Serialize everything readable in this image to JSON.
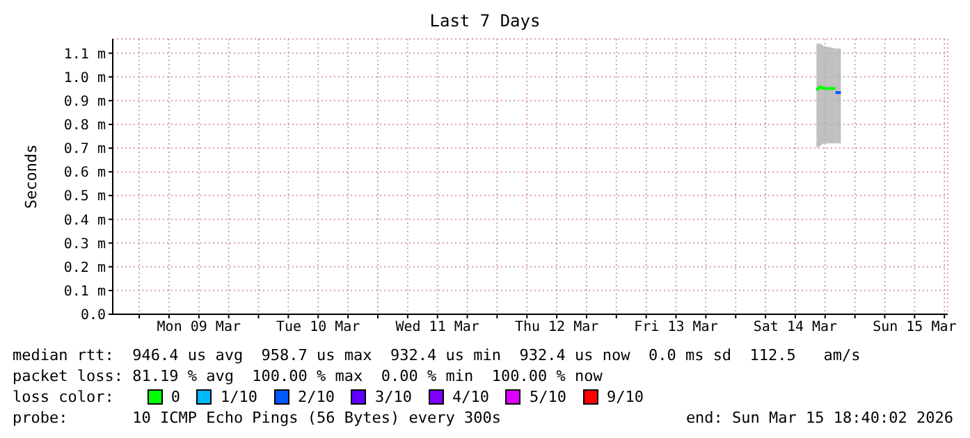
{
  "chart_data": {
    "type": "line",
    "title": "Last 7 Days",
    "ylabel": "Seconds",
    "legend_title": "loss color:",
    "xlim": [
      "2026-03-08T18:40",
      "2026-03-15T18:40"
    ],
    "xticks": [
      {
        "value": "2026-03-09T00:00",
        "label": null
      },
      {
        "value": "2026-03-09T06:00",
        "label": null
      },
      {
        "value": "2026-03-09T12:00",
        "label": "Mon 09 Mar"
      },
      {
        "value": "2026-03-09T18:00",
        "label": null
      },
      {
        "value": "2026-03-10T00:00",
        "label": null
      },
      {
        "value": "2026-03-10T06:00",
        "label": null
      },
      {
        "value": "2026-03-10T12:00",
        "label": "Tue 10 Mar"
      },
      {
        "value": "2026-03-10T18:00",
        "label": null
      },
      {
        "value": "2026-03-11T00:00",
        "label": null
      },
      {
        "value": "2026-03-11T06:00",
        "label": null
      },
      {
        "value": "2026-03-11T12:00",
        "label": "Wed 11 Mar"
      },
      {
        "value": "2026-03-11T18:00",
        "label": null
      },
      {
        "value": "2026-03-12T00:00",
        "label": null
      },
      {
        "value": "2026-03-12T06:00",
        "label": null
      },
      {
        "value": "2026-03-12T12:00",
        "label": "Thu 12 Mar"
      },
      {
        "value": "2026-03-12T18:00",
        "label": null
      },
      {
        "value": "2026-03-13T00:00",
        "label": null
      },
      {
        "value": "2026-03-13T06:00",
        "label": null
      },
      {
        "value": "2026-03-13T12:00",
        "label": "Fri 13 Mar"
      },
      {
        "value": "2026-03-13T18:00",
        "label": null
      },
      {
        "value": "2026-03-14T00:00",
        "label": null
      },
      {
        "value": "2026-03-14T06:00",
        "label": null
      },
      {
        "value": "2026-03-14T12:00",
        "label": "Sat 14 Mar"
      },
      {
        "value": "2026-03-14T18:00",
        "label": null
      },
      {
        "value": "2026-03-15T00:00",
        "label": null
      },
      {
        "value": "2026-03-15T06:00",
        "label": null
      },
      {
        "value": "2026-03-15T12:00",
        "label": "Sun 15 Mar"
      },
      {
        "value": "2026-03-15T18:00",
        "label": null
      }
    ],
    "ylim": [
      0,
      1.16
    ],
    "yticks": [
      {
        "value": 0,
        "label": "0.0"
      },
      {
        "value": 0.1,
        "label": "0.1 m"
      },
      {
        "value": 0.2,
        "label": "0.2 m"
      },
      {
        "value": 0.3,
        "label": "0.3 m"
      },
      {
        "value": 0.4,
        "label": "0.4 m"
      },
      {
        "value": 0.5,
        "label": "0.5 m"
      },
      {
        "value": 0.6,
        "label": "0.6 m"
      },
      {
        "value": 0.7,
        "label": "0.7 m"
      },
      {
        "value": 0.8,
        "label": "0.8 m"
      },
      {
        "value": 0.9,
        "label": "0.9 m"
      },
      {
        "value": 1.0,
        "label": "1.0 m"
      },
      {
        "value": 1.1,
        "label": "1.1 m"
      }
    ],
    "grid": true,
    "legend": "bottom",
    "series": [
      {
        "name": "0",
        "color": "#00ff00",
        "x": [
          "2026-03-14T16:15",
          "2026-03-14T17:05",
          "2026-03-14T17:40",
          "2026-03-14T20:05"
        ],
        "values": [
          0.945,
          0.959,
          0.951,
          0.951
        ],
        "lower": [
          0.7,
          0.71,
          0.72,
          0.72
        ],
        "upper": [
          1.14,
          1.14,
          1.13,
          1.12
        ]
      },
      {
        "name": "1/10",
        "color": "#00b8ff"
      },
      {
        "name": "2/10",
        "color": "#0059ff",
        "x": [
          "2026-03-14T20:05",
          "2026-03-14T21:10"
        ],
        "values": [
          0.934,
          0.934
        ],
        "lower": [
          0.72,
          0.72
        ],
        "upper": [
          1.12,
          1.12
        ]
      },
      {
        "name": "3/10",
        "color": "#5e00ff"
      },
      {
        "name": "4/10",
        "color": "#7e00ff"
      },
      {
        "name": "5/10",
        "color": "#dd00ff"
      },
      {
        "name": "9/10",
        "color": "#ff0000"
      }
    ],
    "annotations": [
      "median rtt:  946.4 us avg  958.7 us max  932.4 us min  932.4 us now  0.0 ms sd  112.5   am/s",
      "packet loss: 81.19 % avg  100.00 % max  0.00 % min  100.00 % now",
      "probe:       10 ICMP Echo Pings (56 Bytes) every 300s",
      "end: Sun Mar 15 18:40:02 2026"
    ]
  }
}
